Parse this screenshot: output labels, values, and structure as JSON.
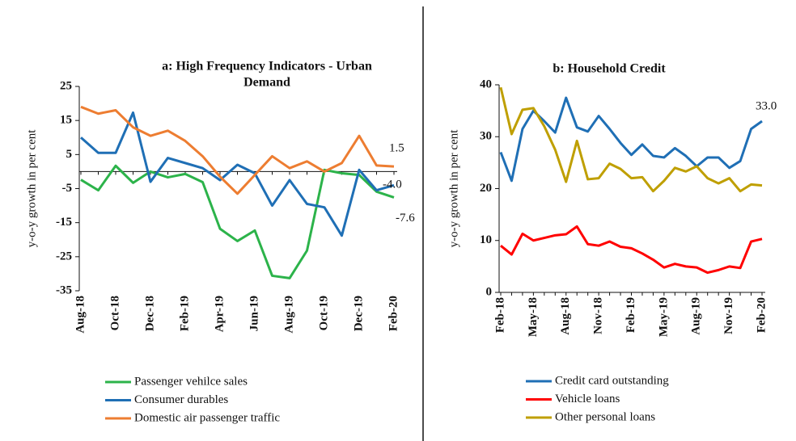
{
  "chart_data": [
    {
      "type": "line",
      "title": [
        "a: High Frequency Indicators - Urban",
        "Demand"
      ],
      "y_label": "y-o-y growth in per cent",
      "categories": [
        "Aug-18",
        null,
        "Oct-18",
        null,
        "Dec-18",
        null,
        "Feb-19",
        null,
        "Apr-19",
        null,
        "Jun-19",
        null,
        "Aug-19",
        null,
        "Oct-19",
        null,
        "Dec-19",
        null,
        "Feb-20"
      ],
      "ylim": [
        -35,
        25
      ],
      "yticks": [
        25,
        15,
        5,
        -5,
        -15,
        -25,
        -35
      ],
      "zero_line": true,
      "series": [
        {
          "name": "Passenger vehilce sales",
          "color": "#2cb34a",
          "values": [
            -2.4,
            -5.5,
            1.7,
            -3.3,
            0,
            -1.7,
            -0.7,
            -3.1,
            -16.8,
            -20.4,
            -17.3,
            -30.6,
            -31.3,
            -23.2,
            0.5,
            -0.5,
            -1.0,
            -5.9,
            -7.6
          ],
          "value_labels": [
            null,
            null,
            null,
            null,
            null,
            null,
            null,
            null,
            null,
            null,
            null,
            null,
            null,
            null,
            null,
            null,
            null,
            null,
            "-7.6"
          ]
        },
        {
          "name": "Consumer durables",
          "color": "#1f6fb5",
          "values": [
            10,
            5.5,
            5.5,
            17.3,
            -3,
            4,
            2.5,
            1,
            -2.5,
            2,
            -0.5,
            -10,
            -2.5,
            -9.5,
            -10.5,
            -18.8,
            0.5,
            -5.5,
            -4.0
          ],
          "value_labels": [
            null,
            null,
            null,
            null,
            null,
            null,
            null,
            null,
            null,
            null,
            null,
            null,
            null,
            null,
            null,
            null,
            null,
            null,
            "-4.0"
          ]
        },
        {
          "name": "Domestic air passenger traffic",
          "color": "#ed7d31",
          "values": [
            19,
            17,
            18,
            13,
            10.5,
            12,
            9,
            4.5,
            -1.5,
            -6.5,
            -1,
            4.5,
            1,
            3,
            0,
            2.5,
            10.5,
            1.8,
            1.5
          ],
          "value_labels": [
            null,
            null,
            null,
            null,
            null,
            null,
            null,
            null,
            null,
            null,
            null,
            null,
            null,
            null,
            null,
            null,
            null,
            null,
            "1.5"
          ]
        }
      ]
    },
    {
      "type": "line",
      "title": [
        "b: Household Credit"
      ],
      "y_label": "y-o-y growth in per cent",
      "categories": [
        "Feb-18",
        null,
        null,
        "May-18",
        null,
        null,
        "Aug-18",
        null,
        null,
        "Nov-18",
        null,
        null,
        "Feb-19",
        null,
        null,
        "May-19",
        null,
        null,
        "Aug-19",
        null,
        null,
        "Nov-19",
        null,
        null,
        "Feb-20"
      ],
      "ylim": [
        0,
        40
      ],
      "yticks": [
        0,
        10,
        20,
        30,
        40
      ],
      "value_label_color": "#333333",
      "series": [
        {
          "name": "Credit card outstanding",
          "color": "#1f6fb5",
          "values": [
            27,
            21.5,
            31.5,
            35,
            33,
            30.8,
            37.5,
            31.8,
            31,
            34,
            31.5,
            28.8,
            26.5,
            28.5,
            26.3,
            26,
            27.8,
            26.3,
            24.3,
            26,
            26,
            24,
            25.3,
            31.5,
            33.0
          ],
          "value_labels": [
            null,
            null,
            null,
            null,
            null,
            null,
            null,
            null,
            null,
            null,
            null,
            null,
            null,
            null,
            null,
            null,
            null,
            null,
            null,
            null,
            null,
            null,
            null,
            null,
            "33.0"
          ]
        },
        {
          "name": "Vehicle loans",
          "color": "#ff0000",
          "values": [
            9,
            7.3,
            11.3,
            10,
            10.5,
            11,
            11.2,
            12.7,
            9.3,
            9,
            9.8,
            8.8,
            8.5,
            7.5,
            6.3,
            4.8,
            5.5,
            5,
            4.8,
            3.8,
            4.3,
            5,
            4.7,
            9.8,
            10.3
          ]
        },
        {
          "name": "Other personal loans",
          "color": "#bf9f00",
          "values": [
            39.5,
            30.5,
            35.2,
            35.5,
            32,
            27.5,
            21.3,
            29.2,
            21.8,
            22,
            24.8,
            23.8,
            22,
            22.2,
            19.5,
            21.5,
            24,
            23.3,
            24.3,
            22,
            21,
            22,
            19.5,
            20.8,
            20.6
          ]
        }
      ]
    }
  ]
}
